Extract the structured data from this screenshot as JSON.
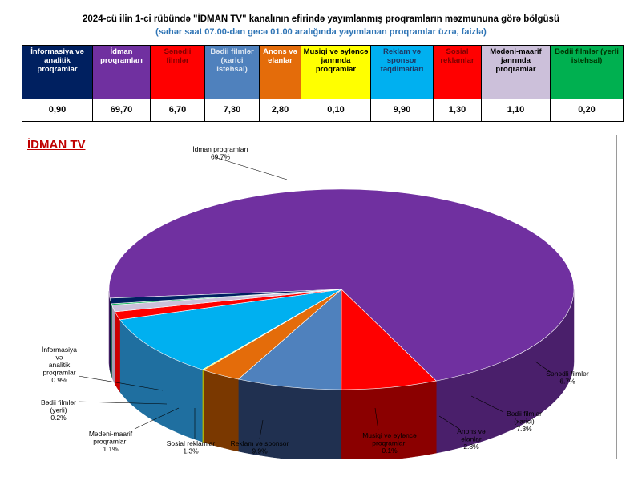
{
  "title": "2024-cü ilin 1-ci rübündə \"İDMAN TV\" kanalının efirində yayımlanmış proqramların məzmununa görə bölgüsü",
  "subtitle": "(səhər saat 07.00-dan gecə 01.00 aralığında yayımlanan proqramlar üzrə, faizlə)",
  "table": {
    "columns": [
      {
        "label": "İnformasiya və analitik proqramlar",
        "value": "0,90",
        "bg": "#002060",
        "fg": "#ffffff"
      },
      {
        "label": "İdman proqramları",
        "value": "69,70",
        "bg": "#7030a0",
        "fg": "#ffffff"
      },
      {
        "label": "Sənədli filmlər",
        "value": "6,70",
        "bg": "#ff0000",
        "fg": "#7f0000"
      },
      {
        "label": "Bədii filmlər (xarici istehsal)",
        "value": "7,30",
        "bg": "#4f81bd",
        "fg": "#dbe5f1"
      },
      {
        "label": "Anons və elanlar",
        "value": "2,80",
        "bg": "#e46c0a",
        "fg": "#ffffff"
      },
      {
        "label": "Musiqi və əyləncə janrında proqramlar",
        "value": "0,10",
        "bg": "#ffff00",
        "fg": "#000000"
      },
      {
        "label": "Reklam və sponsor təqdimatları",
        "value": "9,90",
        "bg": "#00b0f0",
        "fg": "#1f3864"
      },
      {
        "label": "Sosial reklamlar",
        "value": "1,30",
        "bg": "#ff0000",
        "fg": "#7f0000"
      },
      {
        "label": "Mədəni-maarif janrında proqramlar",
        "value": "1,10",
        "bg": "#ccc0da",
        "fg": "#000000"
      },
      {
        "label": "Bədii filmlər (yerli istehsal)",
        "value": "0,20",
        "bg": "#00b050",
        "fg": "#003300"
      }
    ]
  },
  "chart_data": {
    "type": "pie",
    "title": "İDMAN TV",
    "slices": [
      {
        "name": "İdman proqramları",
        "value": 69.7,
        "label": "İdman proqramları",
        "pct": "69.7%",
        "color": "#7030a0",
        "side": "#4a1f6b"
      },
      {
        "name": "Sənədli filmlər",
        "value": 6.7,
        "label": "Sənədli filmlər",
        "pct": "6.7%",
        "color": "#ff0000",
        "side": "#8b0000"
      },
      {
        "name": "Bədii filmlər (xarici)",
        "value": 7.3,
        "label": "Bədii filmlər (xarici)",
        "pct": "7.3%",
        "color": "#4f81bd",
        "side": "#203050"
      },
      {
        "name": "Anons və elanlar",
        "value": 2.8,
        "label": "Anons və elanlar",
        "pct": "2.8%",
        "color": "#e46c0a",
        "side": "#7a3800"
      },
      {
        "name": "Musiqi və əyləncə proqramları",
        "value": 0.1,
        "label": "Musiqi və əyləncə proqramları",
        "pct": "0.1%",
        "color": "#ffff00",
        "side": "#b0b000"
      },
      {
        "name": "Reklam və sponsor",
        "value": 9.9,
        "label": "Reklam və sponsor",
        "pct": "9.9%",
        "color": "#00b0f0",
        "side": "#1f6fa0"
      },
      {
        "name": "Sosial reklamlar",
        "value": 1.3,
        "label": "Sosial reklamlar",
        "pct": "1.3%",
        "color": "#ff0000",
        "side": "#cc0000"
      },
      {
        "name": "Mədəni-maarif proqramları",
        "value": 1.1,
        "label": "Mədəni-maarif proqramları",
        "pct": "1.1%",
        "color": "#ccc0da",
        "side": "#a69cb3"
      },
      {
        "name": "Bədii filmlər (yerli)",
        "value": 0.2,
        "label": "Bədii filmlər (yerli)",
        "pct": "0.2%",
        "color": "#00b050",
        "side": "#007a33"
      },
      {
        "name": "İnformasiya və analitik proqramlar",
        "value": 0.9,
        "label": "İnformasiya və analitik proqramlar",
        "pct": "0.9%",
        "color": "#002060",
        "side": "#001030"
      }
    ]
  }
}
